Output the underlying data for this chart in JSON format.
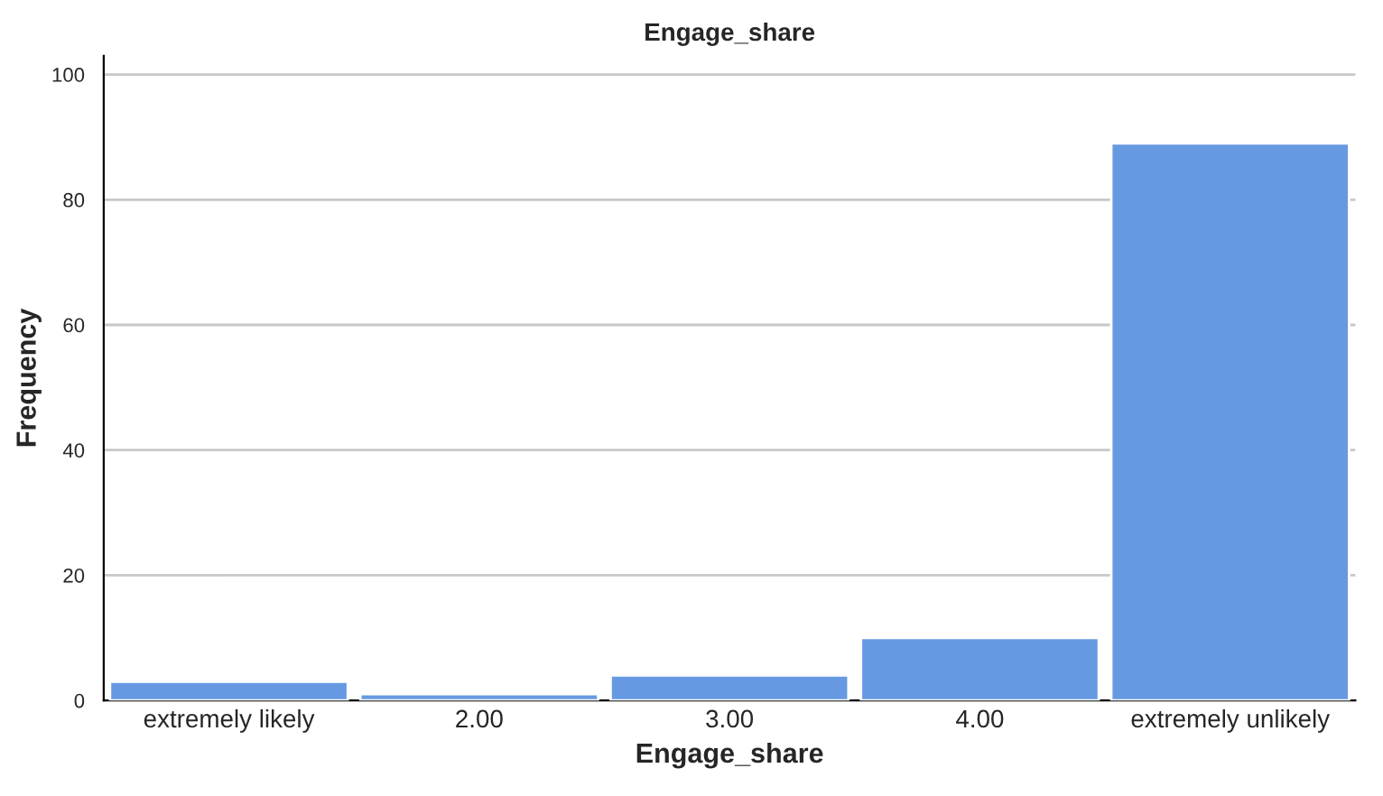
{
  "chart_data": {
    "type": "bar",
    "title": "Engage_share",
    "xlabel": "Engage_share",
    "ylabel": "Frequency",
    "categories": [
      "extremely likely",
      "2.00",
      "3.00",
      "4.00",
      "extremely unlikely"
    ],
    "values": [
      3,
      1,
      4,
      10,
      89
    ],
    "color": "#6699e1",
    "ylim": [
      0,
      103
    ],
    "yticks": [
      0,
      20,
      40,
      60,
      80,
      100
    ],
    "grid": "y"
  }
}
